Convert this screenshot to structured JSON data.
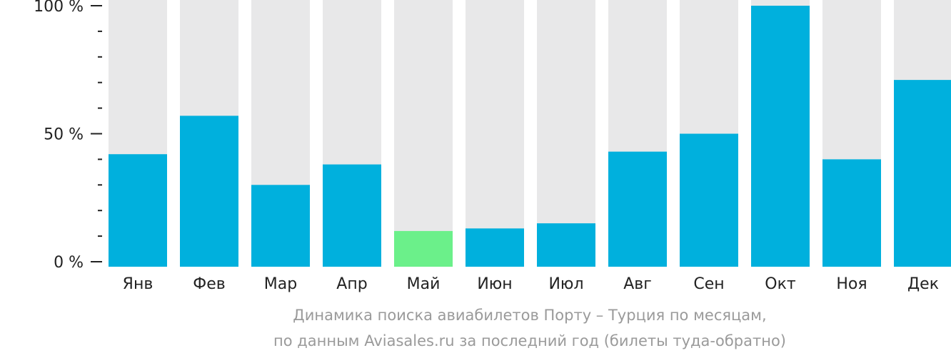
{
  "chart_data": {
    "type": "bar",
    "categories": [
      "Янв",
      "Фев",
      "Мар",
      "Апр",
      "Май",
      "Июн",
      "Июл",
      "Авг",
      "Сен",
      "Окт",
      "Ноя",
      "Дек"
    ],
    "values": [
      42,
      57,
      30,
      38,
      12,
      13,
      15,
      43,
      50,
      100,
      40,
      71
    ],
    "ylim": [
      0,
      100
    ],
    "y_ticks": [
      0,
      50,
      100
    ],
    "y_tick_labels": [
      "0 %",
      "50 %",
      "100 %"
    ],
    "minor_ticks_between": 4,
    "grid": false,
    "highlight_index": 4,
    "colors": {
      "bar": "#00b0dd",
      "highlight": "#6bf08a",
      "track": "#e8e8e9",
      "axis": "#222222",
      "caption": "#9a9a9a"
    },
    "caption_line1": "Динамика поиска авиабилетов Порту – Турция по месяцам,",
    "caption_line2": "по данным Aviasales.ru за последний год (билеты туда-обратно)"
  }
}
